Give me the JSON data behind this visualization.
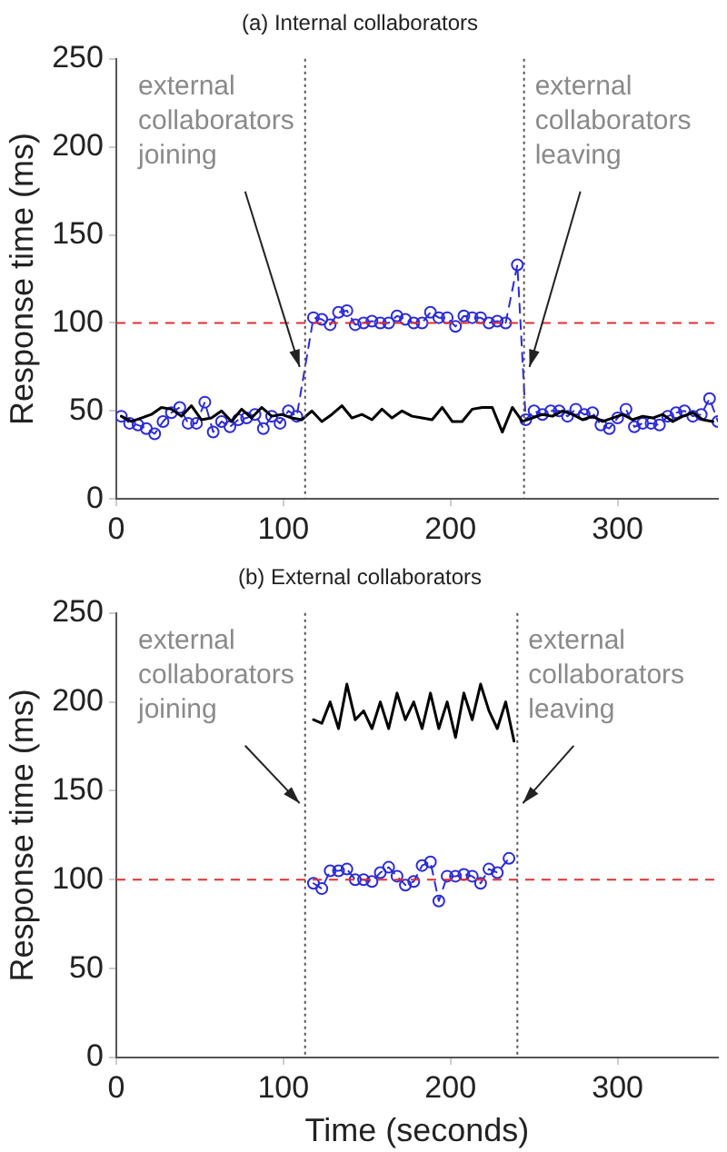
{
  "chart_data": [
    {
      "type": "line",
      "title": "(a) Internal collaborators",
      "ylabel": "Response time (ms)",
      "xlim": [
        0,
        360
      ],
      "xticks": [
        0,
        100,
        200,
        300
      ],
      "ylim": [
        0,
        250
      ],
      "yticks": [
        0,
        50,
        100,
        150,
        200,
        250
      ],
      "grid": false,
      "legend": false,
      "series": [
        {
          "color": "#000000",
          "marker": "none",
          "line_style": "solid",
          "x": [
            3,
            9,
            15,
            21,
            27,
            33,
            39,
            45,
            51,
            57,
            63,
            69,
            75,
            81,
            87,
            93,
            99,
            105,
            111,
            117,
            123,
            129,
            135,
            141,
            147,
            153,
            159,
            165,
            171,
            177,
            183,
            189,
            195,
            201,
            207,
            213,
            219,
            225,
            231,
            237,
            243,
            249,
            255,
            261,
            267,
            273,
            279,
            285,
            291,
            297,
            303,
            309,
            315,
            321,
            327,
            333,
            339,
            345,
            351,
            357
          ],
          "values": [
            47,
            44,
            46,
            48,
            52,
            51,
            47,
            53,
            45,
            46,
            50,
            44,
            51,
            46,
            52,
            47,
            48,
            46,
            45,
            50,
            44,
            48,
            53,
            46,
            48,
            45,
            51,
            46,
            50,
            47,
            46,
            45,
            52,
            44,
            44,
            51,
            52,
            52,
            38,
            52,
            44,
            46,
            48,
            47,
            50,
            48,
            45,
            47,
            44,
            46,
            48,
            45,
            47,
            46,
            48,
            44,
            47,
            49,
            45,
            44
          ]
        },
        {
          "color": "#2b2bd9",
          "marker": "circle",
          "line_style": "dashed",
          "x": [
            3,
            8,
            13,
            18,
            23,
            28,
            33,
            38,
            43,
            48,
            53,
            58,
            63,
            68,
            73,
            78,
            83,
            88,
            93,
            98,
            103,
            108,
            118,
            123,
            128,
            133,
            138,
            143,
            148,
            153,
            158,
            163,
            168,
            173,
            178,
            183,
            188,
            193,
            198,
            203,
            208,
            213,
            218,
            223,
            228,
            233,
            240,
            245,
            250,
            255,
            260,
            265,
            270,
            275,
            280,
            285,
            290,
            295,
            300,
            305,
            310,
            315,
            320,
            325,
            330,
            335,
            340,
            345,
            350,
            355,
            360
          ],
          "values": [
            47,
            43,
            42,
            40,
            37,
            44,
            49,
            52,
            43,
            43,
            55,
            38,
            44,
            41,
            45,
            46,
            48,
            40,
            47,
            43,
            50,
            47,
            103,
            102,
            99,
            106,
            107,
            99,
            100,
            101,
            100,
            100,
            104,
            102,
            100,
            100,
            106,
            103,
            103,
            98,
            104,
            103,
            103,
            100,
            101,
            100,
            133,
            45,
            50,
            48,
            50,
            50,
            47,
            51,
            48,
            49,
            42,
            40,
            46,
            51,
            41,
            43,
            43,
            42,
            47,
            49,
            50,
            47,
            48,
            57,
            44
          ]
        }
      ],
      "ref_lines": [
        {
          "axis": "y",
          "value": 100,
          "color": "#e03030",
          "line_style": "dashed"
        },
        {
          "axis": "x",
          "value": 113,
          "color": "#555555",
          "line_style": "dotted"
        },
        {
          "axis": "x",
          "value": 244,
          "color": "#555555",
          "line_style": "dotted"
        }
      ],
      "annotations": [
        {
          "text": "external collaborators joining",
          "x": 113,
          "y": 75
        },
        {
          "text": "external collaborators leaving",
          "x": 244,
          "y": 75
        }
      ]
    },
    {
      "type": "line",
      "title": "(b) External collaborators",
      "xlabel": "Time (seconds)",
      "ylabel": "Response time (ms)",
      "xlim": [
        0,
        360
      ],
      "xticks": [
        0,
        100,
        200,
        300
      ],
      "ylim": [
        0,
        250
      ],
      "yticks": [
        0,
        50,
        100,
        150,
        200,
        250
      ],
      "grid": false,
      "legend": false,
      "series": [
        {
          "color": "#000000",
          "marker": "none",
          "line_style": "solid",
          "x": [
            118,
            123,
            128,
            133,
            138,
            143,
            148,
            153,
            158,
            163,
            168,
            173,
            178,
            183,
            188,
            193,
            198,
            203,
            208,
            213,
            218,
            223,
            228,
            233,
            238
          ],
          "values": [
            190,
            188,
            200,
            185,
            210,
            190,
            195,
            185,
            200,
            185,
            205,
            190,
            200,
            185,
            205,
            185,
            200,
            180,
            205,
            190,
            210,
            195,
            185,
            200,
            178
          ]
        },
        {
          "color": "#2b2bd9",
          "marker": "circle",
          "line_style": "dashed",
          "x": [
            118,
            123,
            128,
            133,
            138,
            143,
            148,
            153,
            158,
            163,
            168,
            173,
            178,
            183,
            188,
            193,
            198,
            203,
            208,
            213,
            218,
            223,
            228,
            235
          ],
          "values": [
            98,
            95,
            105,
            105,
            106,
            100,
            100,
            99,
            104,
            107,
            102,
            97,
            99,
            108,
            110,
            88,
            102,
            102,
            103,
            102,
            98,
            106,
            104,
            112
          ]
        }
      ],
      "ref_lines": [
        {
          "axis": "y",
          "value": 100,
          "color": "#e03030",
          "line_style": "dashed"
        },
        {
          "axis": "x",
          "value": 113,
          "color": "#555555",
          "line_style": "dotted"
        },
        {
          "axis": "x",
          "value": 240,
          "color": "#555555",
          "line_style": "dotted"
        }
      ],
      "annotations": [
        {
          "text": "external collaborators joining",
          "x": 113,
          "y": 143
        },
        {
          "text": "external collaborators leaving",
          "x": 240,
          "y": 143
        }
      ]
    }
  ]
}
